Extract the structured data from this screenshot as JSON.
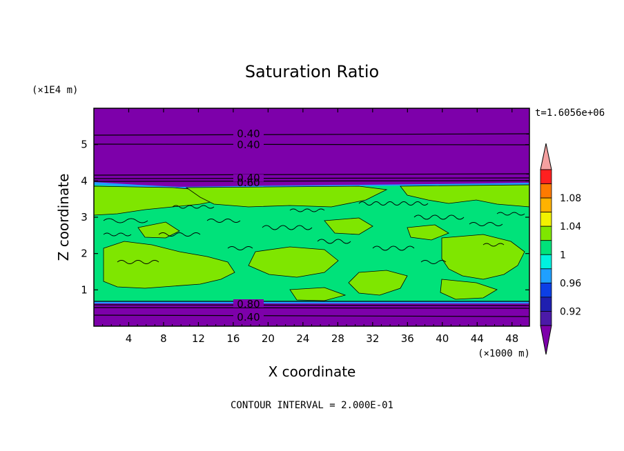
{
  "chart_data": {
    "type": "heatmap",
    "title": "Saturation Ratio",
    "xlabel": "X coordinate",
    "ylabel": "Z coordinate",
    "x_unit": "(×1000 m)",
    "y_unit": "(×1E4 m)",
    "time_label": "t=1.6056e+06",
    "footer": "CONTOUR INTERVAL = 2.000E-01",
    "xlim": [
      0,
      50
    ],
    "ylim": [
      0,
      6
    ],
    "x_ticks": [
      "4",
      "8",
      "12",
      "16",
      "20",
      "24",
      "28",
      "32",
      "36",
      "40",
      "44",
      "48"
    ],
    "y_ticks": [
      "1",
      "2",
      "3",
      "4",
      "5"
    ],
    "colorbar": {
      "levels": [
        0.9,
        0.92,
        0.94,
        0.96,
        0.98,
        1.0,
        1.02,
        1.04,
        1.06,
        1.08,
        1.1
      ],
      "tick_labels": [
        "0.92",
        "0.96",
        "1",
        "1.04",
        "1.08"
      ],
      "colors": [
        "#4b1aa8",
        "#1f1fb0",
        "#0c3fe6",
        "#1fa0ff",
        "#00f2e0",
        "#00e27a",
        "#7fe600",
        "#f2f200",
        "#ffb200",
        "#ff7a00",
        "#ff2020"
      ],
      "under_color": "#7d00aa",
      "over_color": "#f4a0a0"
    },
    "bands": [
      {
        "name": "upper-dry-layer",
        "z_from": 4.0,
        "z_to": 6.0,
        "value": "<0.9"
      },
      {
        "name": "saturated-cloud-layer",
        "z_from": 0.65,
        "z_to": 3.95,
        "value": "~1.0"
      },
      {
        "name": "lower-dry-layer",
        "z_from": 0.0,
        "z_to": 0.65,
        "value": "<0.9"
      }
    ],
    "contour_labels": [
      "0.40",
      "0.40",
      "0.40",
      "0.60",
      "0.80",
      "0.40"
    ],
    "contour_levels_z": [
      5.22,
      4.97,
      3.98,
      3.92,
      0.52,
      0.22
    ]
  }
}
